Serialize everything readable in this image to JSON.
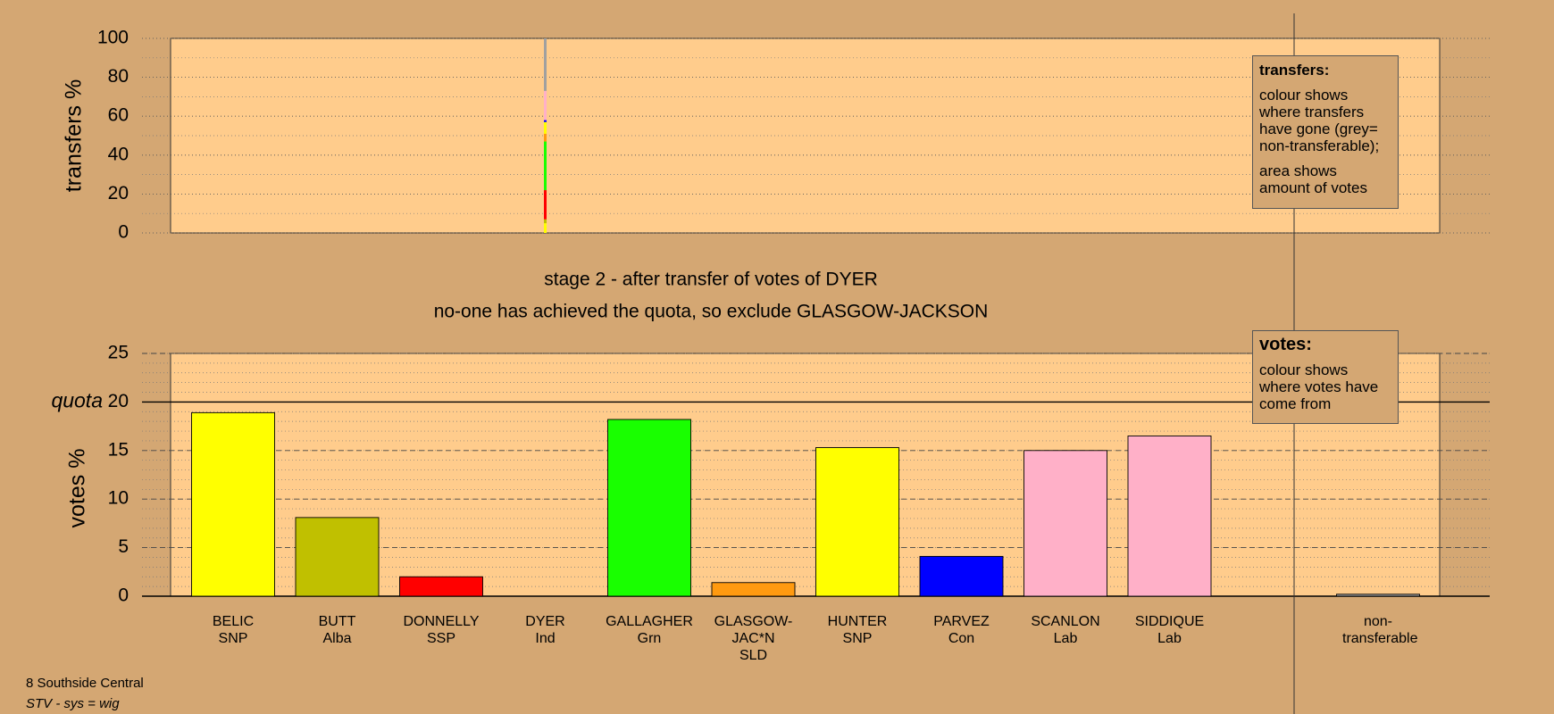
{
  "chart_data": {
    "type": "bar",
    "stage": "stage 2 - after transfer of votes of DYER",
    "note": "no-one has achieved the quota, so exclude GLASGOW-JACKSON",
    "categories": [
      "BELIC",
      "BUTT",
      "DONNELLY",
      "DYER",
      "GALLAGHER",
      "GLASGOW-JAC*N",
      "HUNTER",
      "PARVEZ",
      "SCANLON",
      "SIDDIQUE",
      "non-transferable"
    ],
    "parties": [
      "SNP",
      "Alba",
      "SSP",
      "Ind",
      "Grn",
      "SLD",
      "SNP",
      "Con",
      "Lab",
      "Lab",
      null
    ],
    "colors": [
      "#ffff00",
      "#c0c000",
      "#ff0000",
      "#c080ff",
      "#19ff00",
      "#ff9a10",
      "#ffff00",
      "#0000ff",
      "#ffb0c8",
      "#ffb0c8",
      "#a0a0a0"
    ],
    "values": [
      18.9,
      8.1,
      2.0,
      0,
      18.2,
      1.4,
      15.3,
      4.1,
      15.0,
      16.5,
      0.2
    ],
    "ylabel": "votes %",
    "ylim": [
      0,
      25
    ],
    "yticks": [
      0,
      5,
      10,
      15,
      20,
      25
    ],
    "minor_step": 1,
    "quota": 20,
    "quota_label": "quota",
    "transfers": {
      "ylabel": "transfers %",
      "ylim": [
        0,
        100
      ],
      "yticks": [
        0,
        20,
        40,
        60,
        80,
        100
      ],
      "minor_step": 10,
      "values": [
        null,
        null,
        null,
        [
          5,
          2,
          15,
          0,
          25,
          4,
          6,
          1,
          8,
          7,
          27
        ],
        null,
        null,
        null,
        null,
        null,
        null,
        null
      ]
    },
    "transfers_box": {
      "title": "transfers:",
      "lines": [
        "colour shows where transfers have gone (grey= non-transferable);",
        "area shows amount of votes"
      ]
    },
    "votes_box": {
      "title": "votes:",
      "lines": [
        "colour shows where votes have come from"
      ]
    },
    "footer": [
      "8 Southside Central",
      "STV - sys = wig"
    ]
  }
}
